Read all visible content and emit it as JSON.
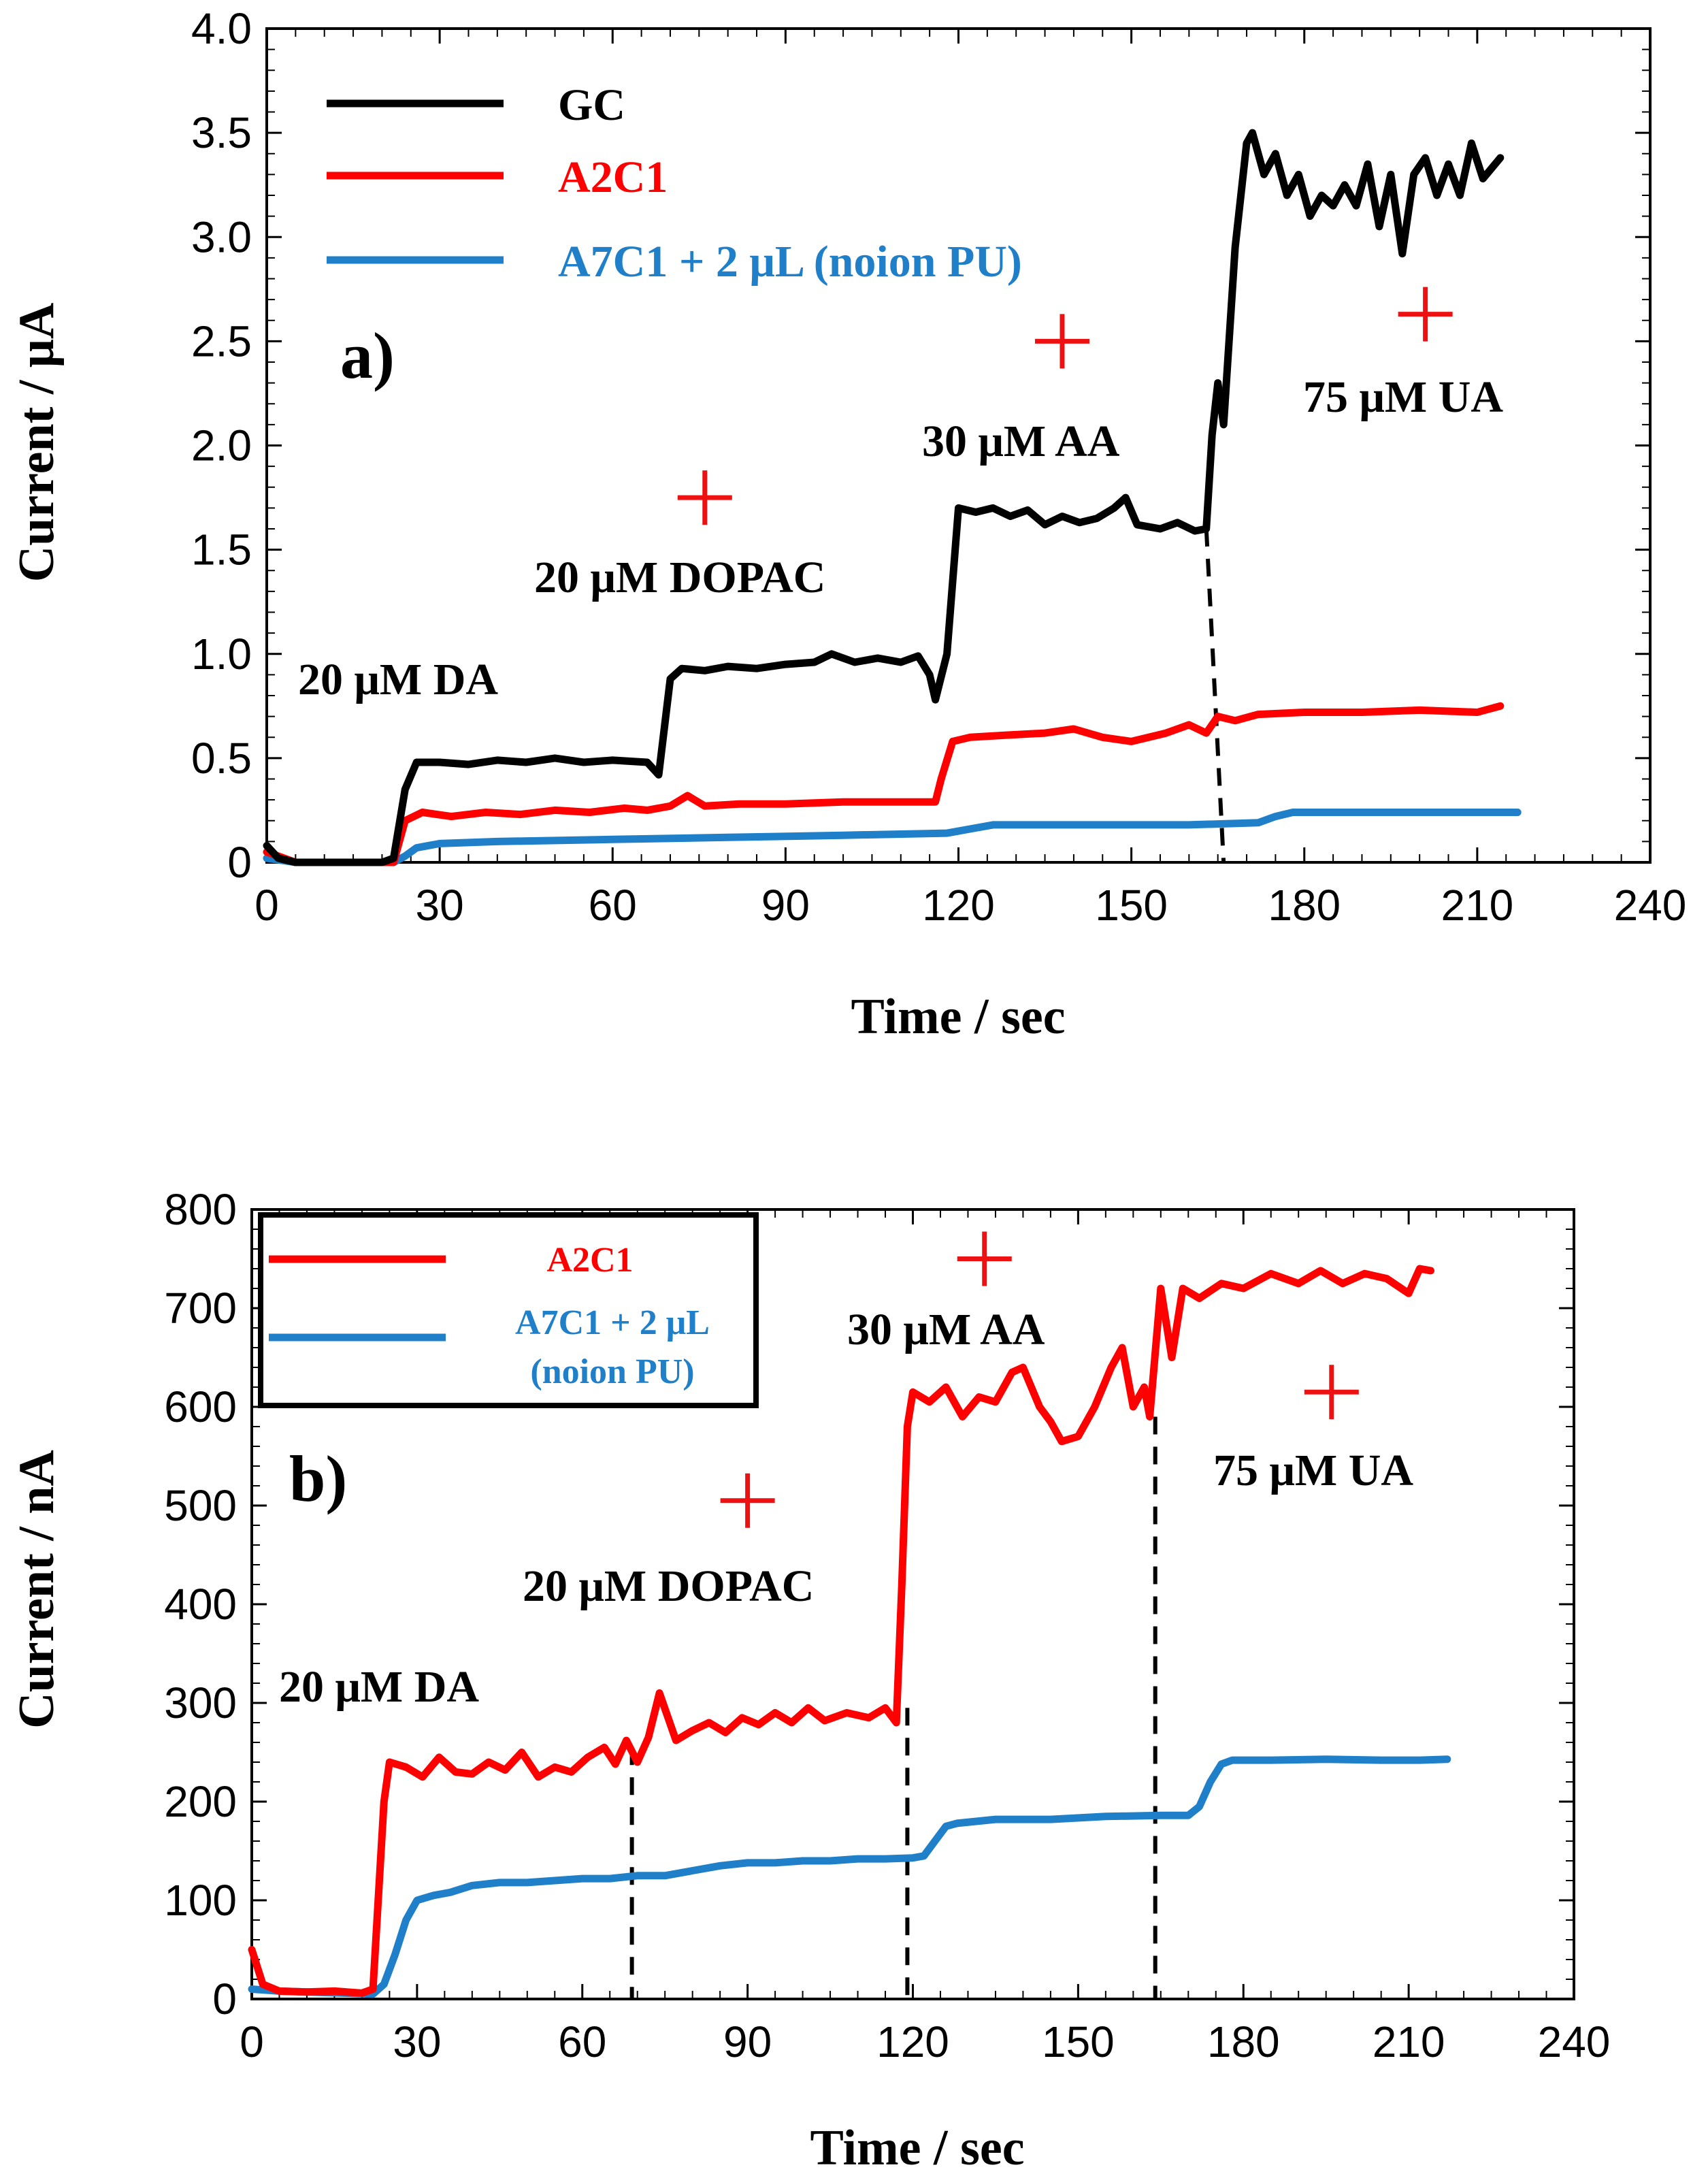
{
  "colors": {
    "GC": "#000000",
    "A2C1": "#ff0000",
    "A7C1": "#1f7fc8",
    "marker": "#ee1111"
  },
  "chart_data": [
    {
      "type": "line",
      "panel_label": "a)",
      "xlabel": "Time / sec",
      "ylabel": "Current / μA",
      "xlim": [
        0,
        240
      ],
      "ylim": [
        0,
        4.0
      ],
      "x_ticks": [
        "0",
        "30",
        "60",
        "90",
        "120",
        "150",
        "180",
        "210",
        "240"
      ],
      "y_ticks": [
        "0",
        "0.5",
        "1.0",
        "1.5",
        "2.0",
        "2.5",
        "3.0",
        "3.5",
        "4.0"
      ],
      "legend_position": "top-left",
      "series": [
        {
          "name": "GC",
          "color": "#000000",
          "points": [
            [
              0,
              0.08
            ],
            [
              2,
              0.02
            ],
            [
              5,
              0
            ],
            [
              20,
              0
            ],
            [
              22,
              0.02
            ],
            [
              24,
              0.35
            ],
            [
              26,
              0.48
            ],
            [
              30,
              0.48
            ],
            [
              35,
              0.47
            ],
            [
              40,
              0.49
            ],
            [
              45,
              0.48
            ],
            [
              50,
              0.5
            ],
            [
              55,
              0.48
            ],
            [
              60,
              0.49
            ],
            [
              66,
              0.48
            ],
            [
              68,
              0.42
            ],
            [
              70,
              0.88
            ],
            [
              72,
              0.93
            ],
            [
              76,
              0.92
            ],
            [
              80,
              0.94
            ],
            [
              85,
              0.93
            ],
            [
              90,
              0.95
            ],
            [
              95,
              0.96
            ],
            [
              98,
              1.0
            ],
            [
              102,
              0.96
            ],
            [
              106,
              0.98
            ],
            [
              110,
              0.96
            ],
            [
              113,
              0.99
            ],
            [
              115,
              0.9
            ],
            [
              116,
              0.78
            ],
            [
              118,
              1.0
            ],
            [
              120,
              1.7
            ],
            [
              123,
              1.68
            ],
            [
              126,
              1.7
            ],
            [
              129,
              1.66
            ],
            [
              132,
              1.69
            ],
            [
              135,
              1.62
            ],
            [
              138,
              1.66
            ],
            [
              141,
              1.63
            ],
            [
              144,
              1.65
            ],
            [
              147,
              1.7
            ],
            [
              149,
              1.75
            ],
            [
              151,
              1.62
            ],
            [
              155,
              1.6
            ],
            [
              158,
              1.63
            ],
            [
              161,
              1.59
            ],
            [
              163,
              1.6
            ],
            [
              164,
              2.05
            ],
            [
              165,
              2.3
            ],
            [
              166,
              2.1
            ],
            [
              168,
              2.95
            ],
            [
              170,
              3.45
            ],
            [
              171,
              3.5
            ],
            [
              173,
              3.3
            ],
            [
              175,
              3.4
            ],
            [
              177,
              3.2
            ],
            [
              179,
              3.3
            ],
            [
              181,
              3.1
            ],
            [
              183,
              3.2
            ],
            [
              185,
              3.15
            ],
            [
              187,
              3.25
            ],
            [
              189,
              3.15
            ],
            [
              191,
              3.35
            ],
            [
              193,
              3.05
            ],
            [
              195,
              3.3
            ],
            [
              197,
              2.92
            ],
            [
              199,
              3.3
            ],
            [
              201,
              3.38
            ],
            [
              203,
              3.2
            ],
            [
              205,
              3.35
            ],
            [
              207,
              3.2
            ],
            [
              209,
              3.45
            ],
            [
              211,
              3.28
            ],
            [
              214,
              3.38
            ]
          ]
        },
        {
          "name": "A2C1",
          "color": "#ff0000",
          "points": [
            [
              0,
              0.05
            ],
            [
              5,
              0
            ],
            [
              20,
              0
            ],
            [
              22,
              0
            ],
            [
              24,
              0.2
            ],
            [
              27,
              0.24
            ],
            [
              32,
              0.22
            ],
            [
              38,
              0.24
            ],
            [
              44,
              0.23
            ],
            [
              50,
              0.25
            ],
            [
              56,
              0.24
            ],
            [
              62,
              0.26
            ],
            [
              66,
              0.25
            ],
            [
              70,
              0.27
            ],
            [
              73,
              0.32
            ],
            [
              76,
              0.27
            ],
            [
              82,
              0.28
            ],
            [
              90,
              0.28
            ],
            [
              100,
              0.29
            ],
            [
              110,
              0.29
            ],
            [
              116,
              0.29
            ],
            [
              117,
              0.4
            ],
            [
              119,
              0.58
            ],
            [
              122,
              0.6
            ],
            [
              128,
              0.61
            ],
            [
              135,
              0.62
            ],
            [
              140,
              0.64
            ],
            [
              145,
              0.6
            ],
            [
              150,
              0.58
            ],
            [
              156,
              0.62
            ],
            [
              160,
              0.66
            ],
            [
              163,
              0.62
            ],
            [
              165,
              0.7
            ],
            [
              168,
              0.68
            ],
            [
              172,
              0.71
            ],
            [
              180,
              0.72
            ],
            [
              190,
              0.72
            ],
            [
              200,
              0.73
            ],
            [
              210,
              0.72
            ],
            [
              214,
              0.75
            ]
          ]
        },
        {
          "name": "A7C1 + 2 μL (noion PU)",
          "color": "#1f7fc8",
          "points": [
            [
              0,
              0.02
            ],
            [
              5,
              0
            ],
            [
              22,
              0
            ],
            [
              24,
              0.03
            ],
            [
              26,
              0.07
            ],
            [
              30,
              0.09
            ],
            [
              40,
              0.1
            ],
            [
              60,
              0.11
            ],
            [
              80,
              0.12
            ],
            [
              100,
              0.13
            ],
            [
              118,
              0.14
            ],
            [
              122,
              0.16
            ],
            [
              126,
              0.18
            ],
            [
              140,
              0.18
            ],
            [
              160,
              0.18
            ],
            [
              172,
              0.19
            ],
            [
              175,
              0.22
            ],
            [
              178,
              0.24
            ],
            [
              190,
              0.24
            ],
            [
              200,
              0.24
            ],
            [
              210,
              0.24
            ],
            [
              217,
              0.24
            ]
          ]
        }
      ],
      "annotations": [
        "20 μM DA",
        "20 μM DOPAC",
        "30 μM AA",
        "75 μM UA"
      ],
      "markers": [
        [
          76,
          1.75
        ],
        [
          138,
          2.5
        ],
        [
          201,
          2.63
        ]
      ],
      "dashed_lines": [
        [
          [
            163,
            1.6
          ],
          [
            166,
            0
          ]
        ]
      ]
    },
    {
      "type": "line",
      "panel_label": "b)",
      "xlabel": "Time / sec",
      "ylabel": "Current / nA",
      "xlim": [
        0,
        240
      ],
      "ylim": [
        0,
        800
      ],
      "x_ticks": [
        "0",
        "30",
        "60",
        "90",
        "120",
        "150",
        "180",
        "210",
        "240"
      ],
      "y_ticks": [
        "0",
        "100",
        "200",
        "300",
        "400",
        "500",
        "600",
        "700",
        "800"
      ],
      "legend_position": "top-left",
      "series": [
        {
          "name": "A2C1",
          "color": "#ff0000",
          "points": [
            [
              0,
              50
            ],
            [
              2,
              15
            ],
            [
              5,
              8
            ],
            [
              10,
              7
            ],
            [
              15,
              8
            ],
            [
              20,
              6
            ],
            [
              22,
              10
            ],
            [
              24,
              200
            ],
            [
              25,
              240
            ],
            [
              28,
              235
            ],
            [
              31,
              225
            ],
            [
              34,
              245
            ],
            [
              37,
              230
            ],
            [
              40,
              228
            ],
            [
              43,
              240
            ],
            [
              46,
              232
            ],
            [
              49,
              250
            ],
            [
              52,
              225
            ],
            [
              55,
              235
            ],
            [
              58,
              230
            ],
            [
              61,
              245
            ],
            [
              64,
              255
            ],
            [
              66,
              238
            ],
            [
              68,
              262
            ],
            [
              70,
              240
            ],
            [
              72,
              265
            ],
            [
              74,
              310
            ],
            [
              77,
              262
            ],
            [
              80,
              272
            ],
            [
              83,
              280
            ],
            [
              86,
              270
            ],
            [
              89,
              285
            ],
            [
              92,
              278
            ],
            [
              95,
              290
            ],
            [
              98,
              280
            ],
            [
              101,
              295
            ],
            [
              104,
              282
            ],
            [
              108,
              290
            ],
            [
              112,
              285
            ],
            [
              115,
              295
            ],
            [
              117,
              280
            ],
            [
              118,
              420
            ],
            [
              119,
              580
            ],
            [
              120,
              615
            ],
            [
              123,
              605
            ],
            [
              126,
              620
            ],
            [
              129,
              590
            ],
            [
              132,
              610
            ],
            [
              135,
              605
            ],
            [
              138,
              635
            ],
            [
              140,
              640
            ],
            [
              143,
              600
            ],
            [
              145,
              585
            ],
            [
              147,
              565
            ],
            [
              150,
              570
            ],
            [
              153,
              600
            ],
            [
              156,
              640
            ],
            [
              158,
              660
            ],
            [
              160,
              600
            ],
            [
              162,
              620
            ],
            [
              163,
              590
            ],
            [
              165,
              720
            ],
            [
              167,
              650
            ],
            [
              169,
              720
            ],
            [
              172,
              710
            ],
            [
              176,
              725
            ],
            [
              180,
              720
            ],
            [
              185,
              735
            ],
            [
              190,
              725
            ],
            [
              194,
              738
            ],
            [
              198,
              725
            ],
            [
              202,
              735
            ],
            [
              206,
              730
            ],
            [
              210,
              715
            ],
            [
              212,
              740
            ],
            [
              214,
              738
            ]
          ]
        },
        {
          "name": "A7C1 + 2 μL",
          "name_line2": "(noion PU)",
          "color": "#1f7fc8",
          "points": [
            [
              0,
              10
            ],
            [
              5,
              8
            ],
            [
              22,
              5
            ],
            [
              24,
              15
            ],
            [
              26,
              45
            ],
            [
              28,
              80
            ],
            [
              30,
              100
            ],
            [
              33,
              105
            ],
            [
              36,
              108
            ],
            [
              40,
              115
            ],
            [
              45,
              118
            ],
            [
              50,
              118
            ],
            [
              55,
              120
            ],
            [
              60,
              122
            ],
            [
              65,
              122
            ],
            [
              70,
              125
            ],
            [
              75,
              125
            ],
            [
              80,
              130
            ],
            [
              85,
              135
            ],
            [
              90,
              138
            ],
            [
              95,
              138
            ],
            [
              100,
              140
            ],
            [
              105,
              140
            ],
            [
              110,
              142
            ],
            [
              115,
              142
            ],
            [
              120,
              143
            ],
            [
              122,
              145
            ],
            [
              124,
              160
            ],
            [
              126,
              175
            ],
            [
              128,
              178
            ],
            [
              135,
              182
            ],
            [
              145,
              182
            ],
            [
              155,
              185
            ],
            [
              165,
              186
            ],
            [
              170,
              186
            ],
            [
              172,
              195
            ],
            [
              174,
              220
            ],
            [
              176,
              238
            ],
            [
              178,
              242
            ],
            [
              185,
              242
            ],
            [
              195,
              243
            ],
            [
              205,
              242
            ],
            [
              212,
              242
            ],
            [
              217,
              243
            ]
          ]
        }
      ],
      "annotations": [
        "20 μM DA",
        "20 μM DOPAC",
        "30 μM AA",
        "75 μM UA"
      ],
      "markers": [
        [
          90,
          505
        ],
        [
          133,
          750
        ],
        [
          196,
          615
        ]
      ],
      "dashed_lines": [
        [
          [
            69,
            255
          ],
          [
            69,
            0
          ]
        ],
        [
          [
            119,
            295
          ],
          [
            119,
            0
          ]
        ],
        [
          [
            164,
            590
          ],
          [
            164,
            0
          ]
        ]
      ]
    }
  ]
}
